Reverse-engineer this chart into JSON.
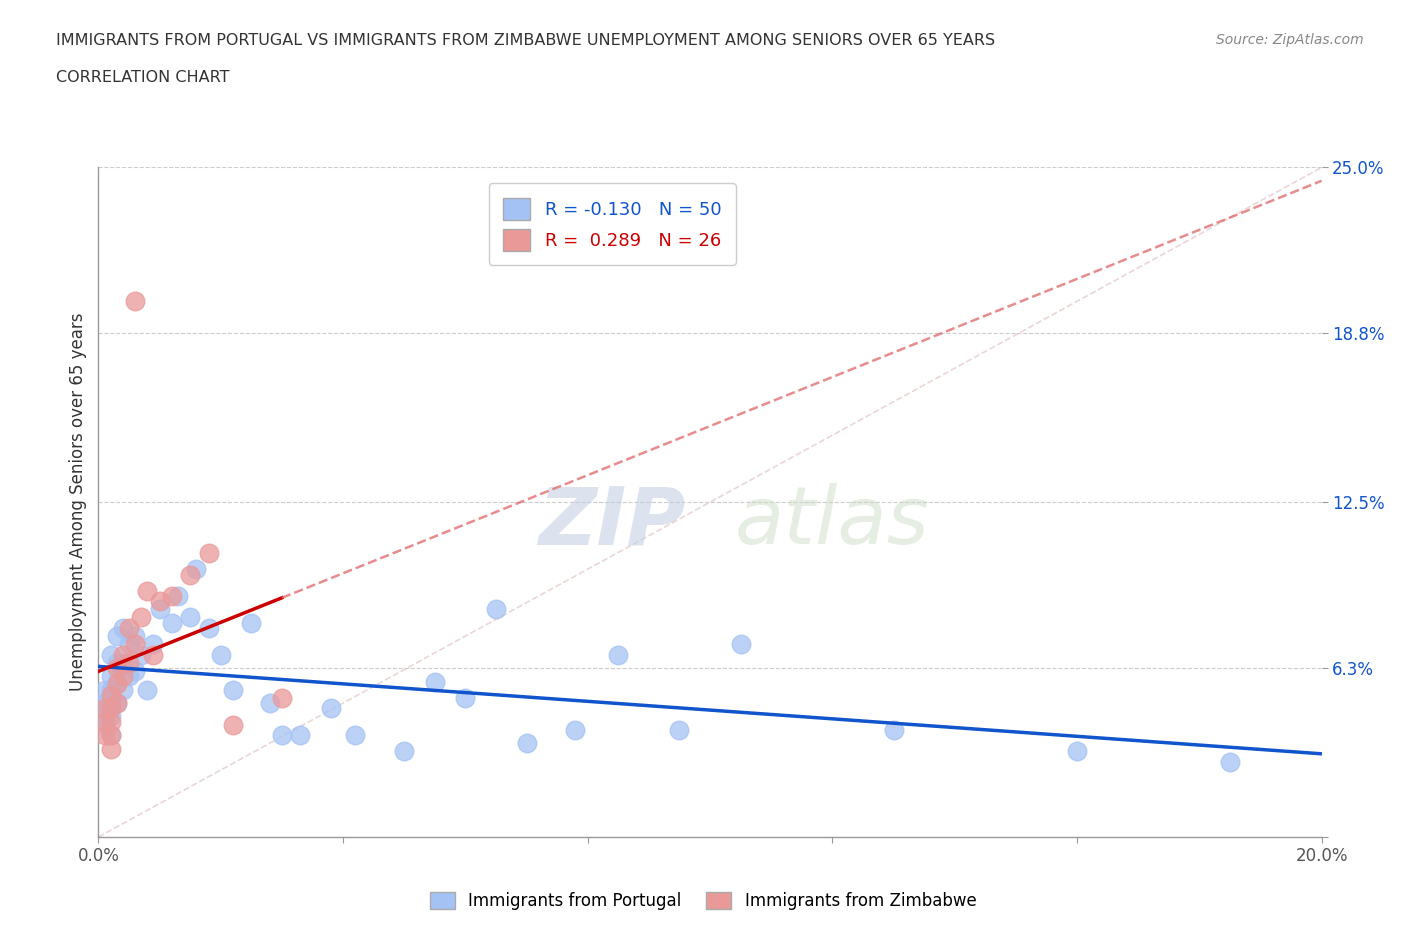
{
  "title_line1": "IMMIGRANTS FROM PORTUGAL VS IMMIGRANTS FROM ZIMBABWE UNEMPLOYMENT AMONG SENIORS OVER 65 YEARS",
  "title_line2": "CORRELATION CHART",
  "source": "Source: ZipAtlas.com",
  "ylabel": "Unemployment Among Seniors over 65 years",
  "xlim": [
    0.0,
    0.2
  ],
  "ylim": [
    0.0,
    0.25
  ],
  "xticks": [
    0.0,
    0.04,
    0.08,
    0.12,
    0.16,
    0.2
  ],
  "xticklabels": [
    "0.0%",
    "",
    "",
    "",
    "",
    "20.0%"
  ],
  "ytick_vals": [
    0.0,
    0.063,
    0.125,
    0.188,
    0.25
  ],
  "ytick_labels": [
    "",
    "6.3%",
    "12.5%",
    "18.8%",
    "25.0%"
  ],
  "portugal_color": "#a4c2f4",
  "zimbabwe_color": "#ea9999",
  "portugal_line_color": "#1155cc",
  "zimbabwe_line_color": "#cc0000",
  "diag_line_color": "#e06666",
  "portugal_R": -0.13,
  "portugal_N": 50,
  "zimbabwe_R": 0.289,
  "zimbabwe_N": 26,
  "watermark_zip": "ZIP",
  "watermark_atlas": "atlas",
  "portugal_x": [
    0.001,
    0.001,
    0.001,
    0.001,
    0.002,
    0.002,
    0.002,
    0.002,
    0.002,
    0.002,
    0.003,
    0.003,
    0.003,
    0.003,
    0.004,
    0.004,
    0.004,
    0.005,
    0.005,
    0.006,
    0.006,
    0.007,
    0.008,
    0.009,
    0.01,
    0.012,
    0.013,
    0.015,
    0.016,
    0.018,
    0.02,
    0.022,
    0.025,
    0.028,
    0.03,
    0.033,
    0.038,
    0.042,
    0.05,
    0.055,
    0.06,
    0.065,
    0.07,
    0.078,
    0.085,
    0.095,
    0.105,
    0.13,
    0.16,
    0.185
  ],
  "portugal_y": [
    0.055,
    0.05,
    0.048,
    0.042,
    0.068,
    0.06,
    0.055,
    0.05,
    0.045,
    0.038,
    0.075,
    0.065,
    0.058,
    0.05,
    0.078,
    0.065,
    0.055,
    0.072,
    0.06,
    0.075,
    0.062,
    0.068,
    0.055,
    0.072,
    0.085,
    0.08,
    0.09,
    0.082,
    0.1,
    0.078,
    0.068,
    0.055,
    0.08,
    0.05,
    0.038,
    0.038,
    0.048,
    0.038,
    0.032,
    0.058,
    0.052,
    0.085,
    0.035,
    0.04,
    0.068,
    0.04,
    0.072,
    0.04,
    0.032,
    0.028
  ],
  "zimbabwe_x": [
    0.001,
    0.001,
    0.001,
    0.002,
    0.002,
    0.002,
    0.002,
    0.002,
    0.003,
    0.003,
    0.003,
    0.004,
    0.004,
    0.005,
    0.005,
    0.006,
    0.006,
    0.007,
    0.008,
    0.009,
    0.01,
    0.012,
    0.015,
    0.018,
    0.022,
    0.03
  ],
  "zimbabwe_y": [
    0.048,
    0.043,
    0.038,
    0.053,
    0.048,
    0.043,
    0.038,
    0.033,
    0.063,
    0.057,
    0.05,
    0.068,
    0.06,
    0.078,
    0.065,
    0.2,
    0.072,
    0.082,
    0.092,
    0.068,
    0.088,
    0.09,
    0.098,
    0.106,
    0.042,
    0.052
  ]
}
